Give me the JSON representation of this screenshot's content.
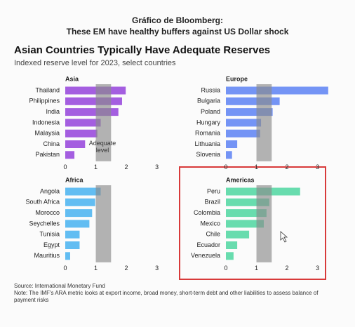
{
  "header": {
    "kicker": "Gráfico de Bloomberg:",
    "kicker_line2": "These EM have healthy buffers against US Dollar shock",
    "title": "Asian Countries Typically Have Adequate Reserves",
    "subtitle": "Indexed reserve level for 2023, select countries",
    "source": "Source: International Monetary Fund",
    "note": "Note: The IMF's ARA metric looks at export income, broad money, short-term debt and other liabilities to assess balance of payment risks"
  },
  "chart_data": [
    {
      "type": "bar",
      "orientation": "horizontal",
      "title": "Asia",
      "categories": [
        "Thailand",
        "Philippines",
        "India",
        "Indonesia",
        "Malaysia",
        "China",
        "Pakistan"
      ],
      "values": [
        1.98,
        1.86,
        1.74,
        1.16,
        1.05,
        0.65,
        0.3
      ],
      "color": "#a45ee0",
      "xlim": [
        0,
        3.4
      ],
      "xticks": [
        0,
        1,
        2,
        3
      ],
      "adequate_range": [
        1,
        1.5
      ],
      "annotation": "Adequate level"
    },
    {
      "type": "bar",
      "orientation": "horizontal",
      "title": "Europe",
      "categories": [
        "Russia",
        "Bulgaria",
        "Poland",
        "Hungary",
        "Romania",
        "Lithuania",
        "Slovenia"
      ],
      "values": [
        3.35,
        1.76,
        1.53,
        1.15,
        1.12,
        0.37,
        0.2
      ],
      "color": "#7494f5",
      "xlim": [
        0,
        3.4
      ],
      "xticks": [
        0,
        1,
        2,
        3
      ],
      "adequate_range": [
        1,
        1.5
      ]
    },
    {
      "type": "bar",
      "orientation": "horizontal",
      "title": "Africa",
      "categories": [
        "Angola",
        "South Africa",
        "Morocco",
        "Seychelles",
        "Tunisia",
        "Egypt",
        "Mauritius"
      ],
      "values": [
        1.16,
        0.98,
        0.88,
        0.79,
        0.47,
        0.47,
        0.16
      ],
      "color": "#62bdf2",
      "xlim": [
        0,
        3.4
      ],
      "xticks": [
        0,
        1,
        2,
        3
      ],
      "adequate_range": [
        1,
        1.5
      ]
    },
    {
      "type": "bar",
      "orientation": "horizontal",
      "title": "Americas",
      "categories": [
        "Peru",
        "Brazil",
        "Colombia",
        "Mexico",
        "Chile",
        "Ecuador",
        "Venezuela"
      ],
      "values": [
        2.43,
        1.42,
        1.33,
        1.24,
        0.76,
        0.37,
        0.25
      ],
      "color": "#68dcae",
      "xlim": [
        0,
        3.4
      ],
      "xticks": [
        0,
        1,
        2,
        3
      ],
      "adequate_range": [
        1,
        1.5
      ]
    }
  ]
}
